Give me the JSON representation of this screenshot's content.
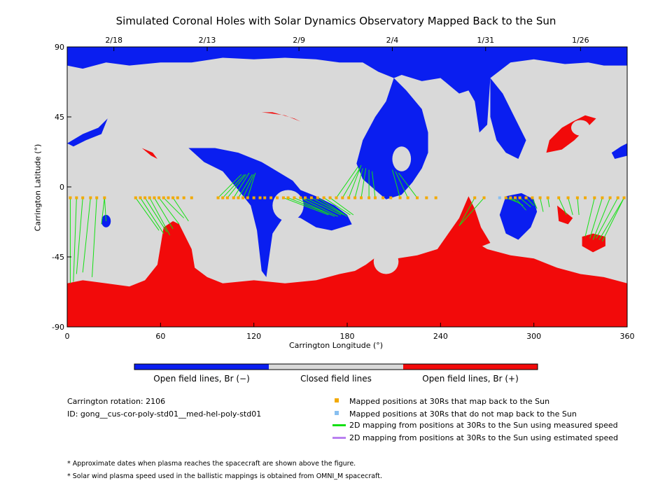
{
  "title": "Simulated Coronal Holes with Solar Dynamics Observatory Mapped Back to the Sun",
  "colors": {
    "open_negative": "#0a1ef0",
    "closed": "#d9d9d9",
    "open_positive": "#f20a0a",
    "mapped": "#f2a900",
    "unmapped": "#88bff0",
    "measured_speed": "#14e014",
    "estimated_speed": "#b980f0"
  },
  "chart_data": {
    "type": "scatter",
    "xlabel": "Carrington Longitude (°)",
    "ylabel": "Carrington Latitude (°)",
    "xlim": [
      0,
      360
    ],
    "ylim": [
      -90,
      90
    ],
    "x_ticks": [
      "0",
      "60",
      "120",
      "180",
      "240",
      "300",
      "360"
    ],
    "y_ticks": [
      "90",
      "45",
      "0",
      "-45",
      "-90"
    ],
    "top_date_ticks": [
      {
        "label": "2/18",
        "lon": 30
      },
      {
        "label": "2/13",
        "lon": 90
      },
      {
        "label": "2/9",
        "lon": 149
      },
      {
        "label": "2/4",
        "lon": 209
      },
      {
        "label": "1/31",
        "lon": 269
      },
      {
        "label": "1/26",
        "lon": 330
      }
    ],
    "mapped_positions_lat": -7,
    "mapped_positions_lon": [
      2,
      6,
      10,
      15,
      19,
      24,
      44,
      47,
      50,
      53,
      56,
      59,
      62,
      65,
      68,
      71,
      75,
      80,
      97,
      100,
      103,
      107,
      110,
      113,
      116,
      120,
      124,
      127,
      131,
      135,
      139,
      142,
      146,
      150,
      153,
      157,
      161,
      165,
      169,
      173,
      177,
      181,
      185,
      189,
      194,
      198,
      203,
      208,
      214,
      219,
      225,
      231,
      237,
      262,
      268,
      282,
      285,
      288,
      291,
      295,
      299,
      304,
      309,
      316,
      322,
      328,
      333,
      339,
      344,
      349,
      354,
      358
    ],
    "unmapped_positions_lon": [
      278
    ],
    "footpoints": [
      [
        2,
        -62
      ],
      [
        4,
        -61
      ],
      [
        6,
        -56
      ],
      [
        10,
        -55
      ],
      [
        16,
        -58
      ],
      [
        25,
        -22
      ],
      [
        22,
        -24
      ],
      [
        59,
        -28
      ],
      [
        62,
        -30
      ],
      [
        64,
        -29
      ],
      [
        66,
        -31
      ],
      [
        68,
        -27
      ],
      [
        72,
        -24
      ],
      [
        75,
        -20
      ],
      [
        78,
        -22
      ],
      [
        112,
        8
      ],
      [
        114,
        8
      ],
      [
        115,
        8
      ],
      [
        117,
        9
      ],
      [
        119,
        8
      ],
      [
        120,
        8
      ],
      [
        121,
        9
      ],
      [
        168,
        -18
      ],
      [
        170,
        -18
      ],
      [
        172,
        -19
      ],
      [
        174,
        -19
      ],
      [
        176,
        -18
      ],
      [
        178,
        -18
      ],
      [
        180,
        -19
      ],
      [
        182,
        -18
      ],
      [
        184,
        -18
      ],
      [
        187,
        13
      ],
      [
        188,
        12
      ],
      [
        189,
        14
      ],
      [
        190,
        12
      ],
      [
        192,
        12
      ],
      [
        194,
        11
      ],
      [
        196,
        10
      ],
      [
        209,
        11
      ],
      [
        211,
        10
      ],
      [
        213,
        9
      ],
      [
        252,
        -25
      ],
      [
        290,
        -10
      ],
      [
        293,
        -12
      ],
      [
        295,
        -15
      ],
      [
        298,
        -13
      ],
      [
        300,
        -12
      ],
      [
        302,
        -14
      ],
      [
        306,
        -16
      ],
      [
        310,
        -13
      ],
      [
        321,
        -18
      ],
      [
        325,
        -18
      ],
      [
        329,
        -18
      ],
      [
        333,
        -32
      ],
      [
        336,
        -33
      ],
      [
        338,
        -34
      ],
      [
        340,
        -33
      ],
      [
        342,
        -34
      ],
      [
        344,
        -35
      ],
      [
        346,
        -33
      ]
    ],
    "links": [
      [
        2,
        0
      ],
      [
        6,
        1
      ],
      [
        10,
        2
      ],
      [
        15,
        3
      ],
      [
        19,
        4
      ],
      [
        24,
        5
      ],
      [
        24,
        6
      ],
      [
        44,
        7
      ],
      [
        47,
        8
      ],
      [
        50,
        9
      ],
      [
        53,
        10
      ],
      [
        56,
        11
      ],
      [
        59,
        12
      ],
      [
        62,
        13
      ],
      [
        68,
        14
      ],
      [
        97,
        15
      ],
      [
        100,
        16
      ],
      [
        103,
        17
      ],
      [
        107,
        18
      ],
      [
        110,
        19
      ],
      [
        113,
        20
      ],
      [
        116,
        21
      ],
      [
        139,
        22
      ],
      [
        142,
        23
      ],
      [
        146,
        24
      ],
      [
        150,
        25
      ],
      [
        153,
        26
      ],
      [
        157,
        27
      ],
      [
        161,
        28
      ],
      [
        165,
        29
      ],
      [
        169,
        30
      ],
      [
        173,
        31
      ],
      [
        177,
        32
      ],
      [
        181,
        33
      ],
      [
        185,
        34
      ],
      [
        189,
        35
      ],
      [
        194,
        36
      ],
      [
        198,
        37
      ],
      [
        214,
        38
      ],
      [
        219,
        39
      ],
      [
        225,
        40
      ],
      [
        262,
        41
      ],
      [
        268,
        41
      ],
      [
        282,
        42
      ],
      [
        285,
        43
      ],
      [
        288,
        44
      ],
      [
        291,
        45
      ],
      [
        295,
        46
      ],
      [
        299,
        47
      ],
      [
        304,
        48
      ],
      [
        309,
        49
      ],
      [
        316,
        50
      ],
      [
        322,
        51
      ],
      [
        328,
        52
      ],
      [
        339,
        53
      ],
      [
        344,
        54
      ],
      [
        349,
        55
      ],
      [
        354,
        56
      ],
      [
        358,
        57
      ],
      [
        358,
        58
      ]
    ]
  },
  "colorbar": {
    "labels": [
      "Open field lines, Br (−)",
      "Closed field lines",
      "Open field lines, Br (+)"
    ]
  },
  "info": {
    "rotation": "Carrington rotation: 2106",
    "id": "ID: gong__cus-cor-poly-std01__med-hel-poly-std01"
  },
  "legend": [
    {
      "label": "Mapped positions at 30Rs that map back to the Sun",
      "marker": "square",
      "color_key": "mapped"
    },
    {
      "label": "Mapped positions at 30Rs that do not map back to the Sun",
      "marker": "square",
      "color_key": "unmapped"
    },
    {
      "label": "2D mapping from positions at 30Rs to the Sun using measured speed",
      "marker": "line",
      "color_key": "measured_speed"
    },
    {
      "label": "2D mapping from positions at 30Rs to the Sun using estimated speed",
      "marker": "line",
      "color_key": "estimated_speed"
    }
  ],
  "footnotes": [
    "* Approximate dates when plasma reaches the spacecraft are shown above the figure.",
    "* Solar wind plasma speed used in the ballistic mappings is obtained from OMNI_M spacecraft."
  ]
}
